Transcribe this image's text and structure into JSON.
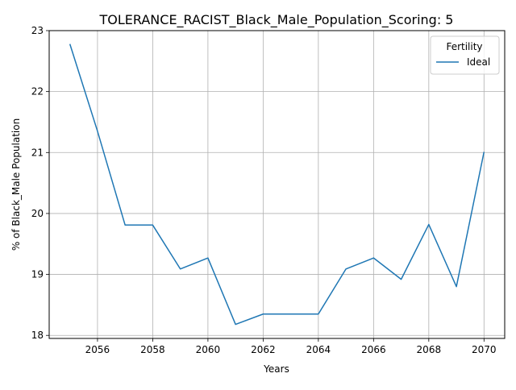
{
  "chart_data": {
    "type": "line",
    "title": "TOLERANCE_RACIST_Black_Male_Population_Scoring: 5",
    "xlabel": "Years",
    "ylabel": "% of Black_Male Population",
    "xlim": [
      2054.25,
      2070.75
    ],
    "ylim": [
      17.95,
      23.0
    ],
    "xticks": [
      2056,
      2058,
      2060,
      2062,
      2064,
      2066,
      2068,
      2070
    ],
    "yticks": [
      18,
      19,
      20,
      21,
      22,
      23
    ],
    "grid": true,
    "legend": {
      "title": "Fertility",
      "placement": "top-right"
    },
    "x": [
      2055,
      2056,
      2057,
      2058,
      2059,
      2060,
      2061,
      2062,
      2063,
      2064,
      2065,
      2066,
      2067,
      2068,
      2069,
      2070
    ],
    "series": [
      {
        "name": "Ideal",
        "color": "#1f77b4",
        "values": [
          22.78,
          21.35,
          19.81,
          19.81,
          19.09,
          19.27,
          18.18,
          18.35,
          18.35,
          18.35,
          19.09,
          19.27,
          18.92,
          19.82,
          18.8,
          21.01
        ]
      }
    ]
  }
}
